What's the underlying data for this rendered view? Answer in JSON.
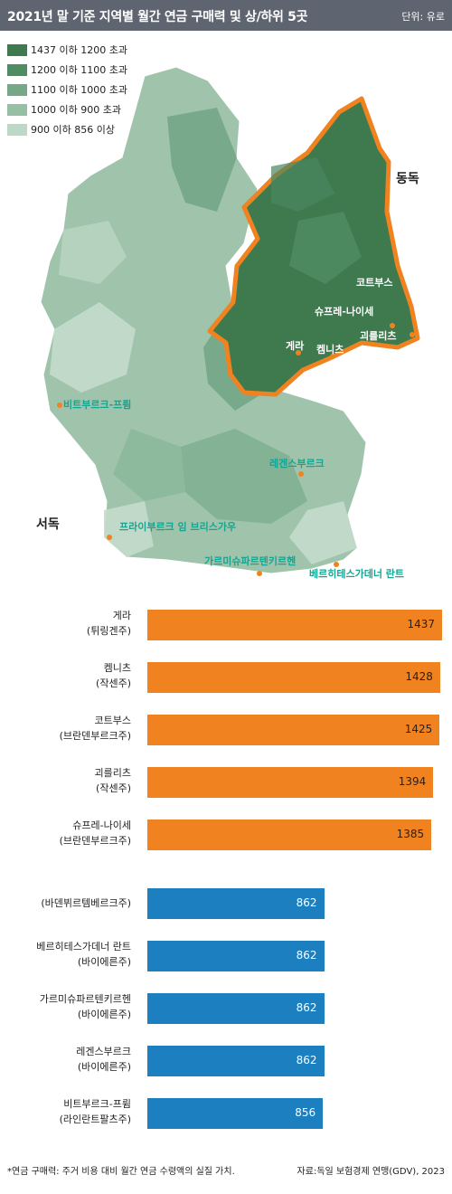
{
  "header": {
    "title": "2021년 말 기준 지역별 월간 연금 구매력 및 상/하위 5곳",
    "unit": "단위: 유로"
  },
  "legend": [
    {
      "label": "1437 이하 1200 초과",
      "color": "#3f7a4f"
    },
    {
      "label": "1200 이하 1100 초과",
      "color": "#4f8c62"
    },
    {
      "label": "1100 이하 1000 초과",
      "color": "#74a886"
    },
    {
      "label": "1000 이하 900 초과",
      "color": "#96bfa4"
    },
    {
      "label": "900 이하 856 이상",
      "color": "#bdd8c6"
    }
  ],
  "map": {
    "east_label": "동독",
    "west_label": "서독",
    "cities": [
      {
        "name": "코트부스",
        "group": "top"
      },
      {
        "name": "슈프레-나이세",
        "group": "top"
      },
      {
        "name": "괴를리츠",
        "group": "top"
      },
      {
        "name": "게라",
        "group": "top"
      },
      {
        "name": "켐니츠",
        "group": "top"
      },
      {
        "name": "비트부르크-프륌",
        "group": "bottom"
      },
      {
        "name": "레겐스부르크",
        "group": "bottom"
      },
      {
        "name": "프라이부르크 임 브리스가우",
        "group": "bottom"
      },
      {
        "name": "가르미슈파르텐키르헨",
        "group": "bottom"
      },
      {
        "name": "베르히테스가데너 란트",
        "group": "bottom"
      }
    ],
    "colors": {
      "east_border": "#f08220",
      "dot_top": "#f08220",
      "dot_bottom": "#f08220"
    }
  },
  "chart_data": {
    "type": "bar",
    "orientation": "horizontal",
    "title": "2021년 말 기준 지역별 월간 연금 구매력 및 상/하위 5곳",
    "xlim": [
      0,
      1437
    ],
    "categories": [
      [
        "게라",
        "(튀링겐주)"
      ],
      [
        "켐니츠",
        "(작센주)"
      ],
      [
        "코트부스",
        "(브란덴부르크주)"
      ],
      [
        "괴를리츠",
        "(작센주)"
      ],
      [
        "슈프레-나이세",
        "(브란덴부르크주)"
      ],
      [
        "(바덴뷔르템베르크주)"
      ],
      [
        "베르히테스가데너 란트",
        "(바이에른주)"
      ],
      [
        "가르미슈파르텐키르헨",
        "(바이에른주)"
      ],
      [
        "레겐스부르크",
        "(바이에른주)"
      ],
      [
        "비트부르크-프륌",
        "(라인란트팔츠주)"
      ]
    ],
    "values": [
      1437,
      1428,
      1425,
      1394,
      1385,
      862,
      862,
      862,
      862,
      856
    ],
    "groups": [
      "top",
      "top",
      "top",
      "top",
      "top",
      "bottom",
      "bottom",
      "bottom",
      "bottom",
      "bottom"
    ],
    "colors": {
      "top": "#f08220",
      "bottom": "#1b7fc0"
    }
  },
  "footer": {
    "note": "*연금 구매력: 주거 비용 대비 월간 연금 수령액의 실질 가치.",
    "source": "자료:독일 보험경제 연맹(GDV), 2023"
  }
}
